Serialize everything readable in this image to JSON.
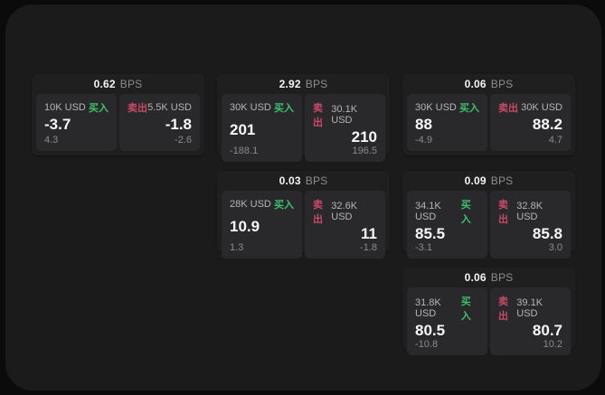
{
  "labels": {
    "bps_unit": "BPS",
    "buy": "买入",
    "sell": "卖出"
  },
  "colors": {
    "page_background": "#0b0b0b",
    "surface_background": "#1b1b1c",
    "card_background": "#1f1f20",
    "panel_background": "#29292b",
    "buy_green": "#3ec06c",
    "sell_red": "#c84a66",
    "primary_text": "#f4f4f4",
    "muted_text": "#8b8b8b"
  },
  "cards": [
    {
      "bps": "0.62",
      "buy": {
        "amount": "10K USD",
        "price": "-3.7",
        "delta": "4.3"
      },
      "sell": {
        "amount": "5.5K USD",
        "price": "-1.8",
        "delta": "-2.6"
      }
    },
    {
      "bps": "2.92",
      "buy": {
        "amount": "30K USD",
        "price": "201",
        "delta": "-188.1"
      },
      "sell": {
        "amount": "30.1K USD",
        "price": "210",
        "delta": "196.5"
      }
    },
    {
      "bps": "0.06",
      "buy": {
        "amount": "30K USD",
        "price": "88",
        "delta": "-4.9"
      },
      "sell": {
        "amount": "30K USD",
        "price": "88.2",
        "delta": "4.7"
      }
    },
    {
      "bps": "0.03",
      "buy": {
        "amount": "28K USD",
        "price": "10.9",
        "delta": "1.3"
      },
      "sell": {
        "amount": "32.6K USD",
        "price": "11",
        "delta": "-1.8"
      }
    },
    {
      "bps": "0.09",
      "buy": {
        "amount": "34.1K USD",
        "price": "85.5",
        "delta": "-3.1"
      },
      "sell": {
        "amount": "32.8K USD",
        "price": "85.8",
        "delta": "3.0"
      }
    },
    {
      "bps": "0.06",
      "buy": {
        "amount": "31.8K USD",
        "price": "80.5",
        "delta": "-10.8"
      },
      "sell": {
        "amount": "39.1K USD",
        "price": "80.7",
        "delta": "10.2"
      }
    }
  ]
}
